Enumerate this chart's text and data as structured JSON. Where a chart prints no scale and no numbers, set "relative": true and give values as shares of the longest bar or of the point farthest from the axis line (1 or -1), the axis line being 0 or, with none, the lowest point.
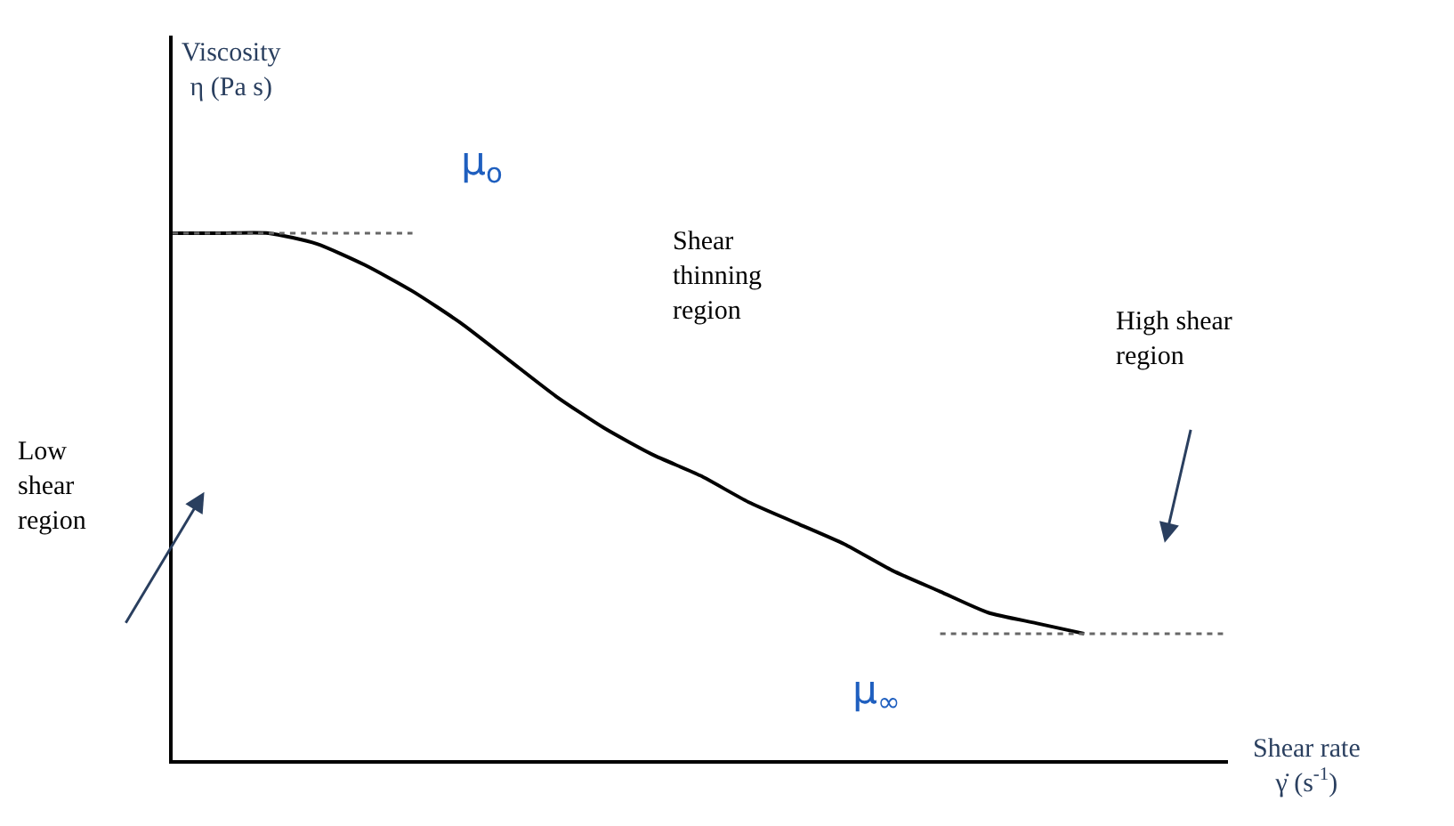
{
  "chart_data": {
    "type": "line",
    "relative": true,
    "xlabel": "Shear rate\nγ̇ (s$^{-1}$)",
    "ylabel": "Viscosity\nη (Pa s)",
    "categories": [
      null,
      null,
      null,
      null,
      null,
      null,
      null,
      null,
      null,
      null,
      null,
      null,
      null,
      null,
      null,
      null,
      null,
      null,
      null,
      null,
      null,
      null,
      null
    ],
    "series": [
      {
        "color": "#000000",
        "line_style": "solid",
        "values": [
          1.0,
          1.0,
          1.0,
          0.98,
          0.94,
          0.89,
          0.83,
          0.76,
          0.69,
          0.63,
          0.58,
          0.54,
          0.49,
          0.45,
          0.41,
          0.36,
          0.32,
          0.28,
          0.26,
          0.24,
          null,
          null,
          null
        ]
      },
      {
        "color": "#666666",
        "line_style": "dotted",
        "values": [
          1.0,
          1.0,
          1.0,
          1.0,
          1.0,
          1.0,
          null,
          null,
          null,
          null,
          null,
          null,
          null,
          null,
          null,
          null,
          null,
          null,
          null,
          null,
          null,
          null,
          null
        ]
      },
      {
        "color": "#666666",
        "line_style": "dotted",
        "values": [
          null,
          null,
          null,
          null,
          null,
          null,
          null,
          null,
          null,
          null,
          null,
          null,
          null,
          null,
          null,
          null,
          0.24,
          0.24,
          0.24,
          0.24,
          0.24,
          0.24,
          0.24
        ]
      }
    ],
    "annotations": [
      "μ$_{o}$",
      "Shear\nthinning\nregion",
      "Low\nshear\nregion",
      "High shear\nregion",
      "μ$_{∞}$"
    ],
    "marker": "none"
  }
}
